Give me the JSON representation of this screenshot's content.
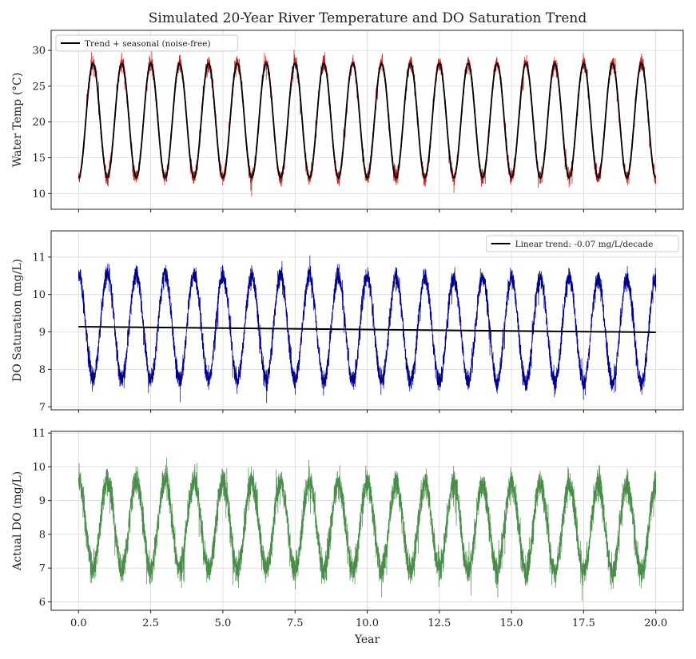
{
  "chart_data": [
    {
      "type": "line",
      "title": "Simulated 20-Year River Temperature and DO Saturation Trend",
      "xlabel": "",
      "ylabel": "Water Temp (°C)",
      "xlim": [
        -0.95,
        20.95
      ],
      "ylim": [
        7.8,
        32.8
      ],
      "yticks": [
        10,
        15,
        20,
        25,
        30
      ],
      "grid": true,
      "legend_position": "top-left",
      "series": [
        {
          "name": "",
          "color": "#b22222",
          "role": "noisy",
          "model": {
            "mean": 20.2,
            "amplitude": 8.0,
            "phase_peak_year": 0.5,
            "trend_per_year": 0.0,
            "noise": 1.1
          }
        },
        {
          "name": "Trend + seasonal (noise-free)",
          "color": "#000000",
          "role": "smooth",
          "model": {
            "mean": 20.2,
            "amplitude": 8.0,
            "phase_peak_year": 0.5,
            "trend_per_year": 0.0
          }
        }
      ]
    },
    {
      "type": "line",
      "title": "",
      "xlabel": "",
      "ylabel": "DO Saturation (mg/L)",
      "xlim": [
        -0.95,
        20.95
      ],
      "ylim": [
        6.92,
        11.7
      ],
      "yticks": [
        7,
        8,
        9,
        10,
        11
      ],
      "grid": true,
      "legend_position": "top-right",
      "series": [
        {
          "name": "",
          "color": "#00008b",
          "role": "noisy",
          "model": {
            "mean": 9.15,
            "amplitude": 1.4,
            "phase_peak_year": 0.0,
            "trend_per_year": -0.007,
            "noise": 0.28
          }
        },
        {
          "name": "Linear trend: -0.07 mg/L/decade",
          "color": "#000000",
          "role": "trend",
          "x": [
            0,
            20
          ],
          "y": [
            9.14,
            8.99
          ]
        }
      ]
    },
    {
      "type": "line",
      "title": "",
      "xlabel": "Year",
      "ylabel": "Actual DO (mg/L)",
      "xlim": [
        -0.95,
        20.95
      ],
      "ylim": [
        5.75,
        11.05
      ],
      "yticks": [
        6,
        7,
        8,
        9,
        10,
        11
      ],
      "xticks": [
        0.0,
        2.5,
        5.0,
        7.5,
        10.0,
        12.5,
        15.0,
        17.5,
        20.0
      ],
      "xticklabels": [
        "0.0",
        "2.5",
        "5.0",
        "7.5",
        "10.0",
        "12.5",
        "15.0",
        "17.5",
        "20.0"
      ],
      "grid": true,
      "series": [
        {
          "name": "",
          "color": "#4a8c4a",
          "role": "noisy",
          "model": {
            "mean": 8.3,
            "amplitude": 1.3,
            "phase_peak_year": 0.0,
            "trend_per_year": -0.007,
            "noise": 0.45
          }
        }
      ]
    }
  ]
}
